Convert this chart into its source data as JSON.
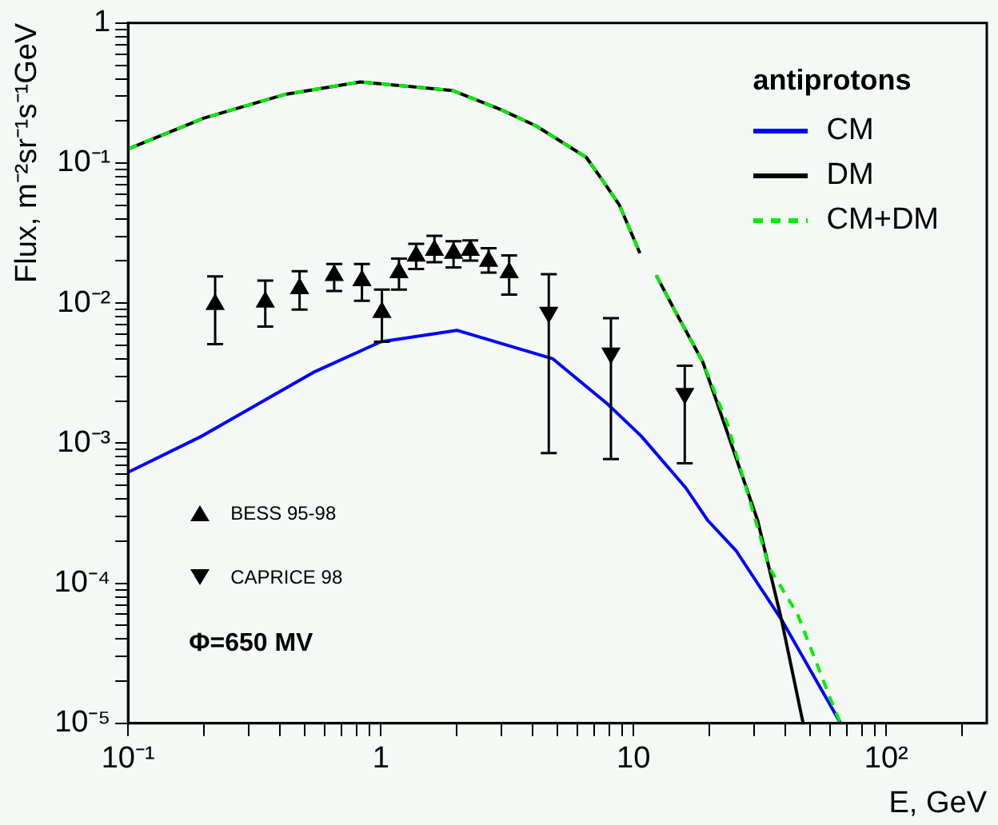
{
  "chart_data": {
    "type": "line",
    "xlabel": "E, GeV",
    "ylabel": "Flux, m⁻²sr⁻¹s⁻¹GeV",
    "legend_title": "antiprotons",
    "legend": "top right",
    "log": "xy",
    "grid": false,
    "xlim": [
      0.1,
      250
    ],
    "xticks": [
      {
        "value": 0.1,
        "label": "10⁻¹"
      },
      {
        "value": 0.2,
        "label": null
      },
      {
        "value": 0.3,
        "label": null
      },
      {
        "value": 0.4,
        "label": null
      },
      {
        "value": 0.5,
        "label": null
      },
      {
        "value": 0.6,
        "label": null
      },
      {
        "value": 0.7,
        "label": null
      },
      {
        "value": 0.8,
        "label": null
      },
      {
        "value": 0.9,
        "label": null
      },
      1,
      {
        "value": 2,
        "label": null
      },
      {
        "value": 3,
        "label": null
      },
      {
        "value": 4,
        "label": null
      },
      {
        "value": 5,
        "label": null
      },
      {
        "value": 6,
        "label": null
      },
      {
        "value": 7,
        "label": null
      },
      {
        "value": 8,
        "label": null
      },
      {
        "value": 9,
        "label": null
      },
      10,
      {
        "value": 20,
        "label": null
      },
      {
        "value": 30,
        "label": null
      },
      {
        "value": 40,
        "label": null
      },
      {
        "value": 50,
        "label": null
      },
      {
        "value": 60,
        "label": null
      },
      {
        "value": 70,
        "label": null
      },
      {
        "value": 80,
        "label": null
      },
      {
        "value": 90,
        "label": null
      },
      {
        "value": 100,
        "label": "10²"
      },
      {
        "value": 200,
        "label": null
      }
    ],
    "ylim": [
      1e-05,
      1
    ],
    "yticks": [
      {
        "value": 1e-05,
        "label": "10⁻⁵"
      },
      {
        "value": 2e-05,
        "label": null
      },
      {
        "value": 3e-05,
        "label": null
      },
      {
        "value": 4e-05,
        "label": null
      },
      {
        "value": 5e-05,
        "label": null
      },
      {
        "value": 6e-05,
        "label": null
      },
      {
        "value": 7e-05,
        "label": null
      },
      {
        "value": 8e-05,
        "label": null
      },
      {
        "value": 9e-05,
        "label": null
      },
      {
        "value": 0.0001,
        "label": "10⁻⁴"
      },
      {
        "value": 0.0002,
        "label": null
      },
      {
        "value": 0.0003,
        "label": null
      },
      {
        "value": 0.0004,
        "label": null
      },
      {
        "value": 0.0005,
        "label": null
      },
      {
        "value": 0.0006,
        "label": null
      },
      {
        "value": 0.0007,
        "label": null
      },
      {
        "value": 0.0008,
        "label": null
      },
      {
        "value": 0.0009,
        "label": null
      },
      {
        "value": 0.001,
        "label": "10⁻³"
      },
      {
        "value": 0.002,
        "label": null
      },
      {
        "value": 0.003,
        "label": null
      },
      {
        "value": 0.004,
        "label": null
      },
      {
        "value": 0.005,
        "label": null
      },
      {
        "value": 0.006,
        "label": null
      },
      {
        "value": 0.007,
        "label": null
      },
      {
        "value": 0.008,
        "label": null
      },
      {
        "value": 0.009,
        "label": null
      },
      {
        "value": 0.01,
        "label": "10⁻²"
      },
      {
        "value": 0.02,
        "label": null
      },
      {
        "value": 0.03,
        "label": null
      },
      {
        "value": 0.04,
        "label": null
      },
      {
        "value": 0.05,
        "label": null
      },
      {
        "value": 0.06,
        "label": null
      },
      {
        "value": 0.07,
        "label": null
      },
      {
        "value": 0.08,
        "label": null
      },
      {
        "value": 0.09,
        "label": null
      },
      {
        "value": 0.1,
        "label": "10⁻¹"
      },
      {
        "value": 0.2,
        "label": null
      },
      {
        "value": 0.3,
        "label": null
      },
      {
        "value": 0.4,
        "label": null
      },
      {
        "value": 0.5,
        "label": null
      },
      {
        "value": 0.6,
        "label": null
      },
      {
        "value": 0.7,
        "label": null
      },
      {
        "value": 0.8,
        "label": null
      },
      {
        "value": 0.9,
        "label": null
      },
      1
    ],
    "annotations": [
      "Φ=650 MV"
    ],
    "series": [
      {
        "name": "CM",
        "color": "#0000ff",
        "line_style": "solid",
        "x": [
          0.1,
          0.197,
          0.54,
          1,
          2.0,
          4.8,
          7.9,
          10.7,
          16.1,
          19.7,
          25.5,
          38.5,
          66
        ],
        "values": [
          0.00062,
          0.00113,
          0.0032,
          0.0053,
          0.0064,
          0.004,
          0.0019,
          0.00113,
          0.00048,
          0.00028,
          0.00017,
          5.5e-05,
          1e-05
        ]
      },
      {
        "name": "DM",
        "color": "#000000",
        "line_style": "solid",
        "x": [
          0.1,
          0.2,
          0.42,
          0.83,
          1.92,
          3.0,
          4.1,
          6.5,
          7.55,
          8.8,
          10.6,
          11.4,
          12.3,
          14.5,
          18.8,
          20.8,
          31,
          38.5,
          46.9
        ],
        "values": [
          0.126,
          0.21,
          0.31,
          0.38,
          0.33,
          0.24,
          0.185,
          0.11,
          0.075,
          0.05,
          0.0227,
          null,
          0.0158,
          0.009,
          0.0038,
          0.00226,
          0.00028,
          5.5e-05,
          1e-05
        ]
      },
      {
        "name": "CM+DM",
        "color": "#00ee00",
        "line_style": "dashed",
        "x": [
          0.1,
          0.2,
          0.42,
          0.83,
          1.92,
          3.0,
          4.1,
          6.5,
          7.55,
          8.8,
          10.6,
          11.4,
          12.3,
          14.5,
          18.8,
          23.6,
          34.4,
          44.6,
          60.1,
          66
        ],
        "values": [
          0.126,
          0.21,
          0.31,
          0.38,
          0.33,
          0.24,
          0.185,
          0.11,
          0.075,
          0.05,
          0.0227,
          null,
          0.0158,
          0.009,
          0.0038,
          0.00135,
          0.00013,
          6e-05,
          1.5e-05,
          1e-05
        ]
      },
      {
        "name": "BESS 95-98",
        "type": "scatter",
        "marker": "triangle",
        "color": "#000000",
        "x": [
          0.221,
          0.349,
          0.477,
          0.654,
          0.842,
          1.01,
          1.18,
          1.38,
          1.63,
          1.94,
          2.26,
          2.67,
          3.22
        ],
        "values": [
          0.0098,
          0.0102,
          0.0127,
          0.0158,
          0.0145,
          0.0086,
          0.0165,
          0.0217,
          0.0239,
          0.0227,
          0.0239,
          0.0199,
          0.0165
        ],
        "errors": [
          [
            0.0051,
            0.0155
          ],
          [
            0.0068,
            0.0145
          ],
          [
            0.009,
            0.0169
          ],
          [
            0.0122,
            0.019
          ],
          [
            0.0104,
            0.019
          ],
          [
            0.0053,
            0.0125
          ],
          [
            0.0125,
            0.0208
          ],
          [
            0.0175,
            0.0265
          ],
          [
            0.0196,
            0.0302
          ],
          [
            0.018,
            0.0277
          ],
          [
            0.0201,
            0.028
          ],
          [
            0.0165,
            0.0247
          ],
          [
            0.0115,
            0.0219
          ]
        ]
      },
      {
        "name": "CAPRICE 98",
        "type": "scatter",
        "marker": "triangle-down",
        "color": "#000000",
        "x": [
          4.62,
          8.14,
          15.95
        ],
        "values": [
          0.0086,
          0.0044,
          0.00226
        ],
        "errors": [
          [
            0.00085,
            0.0161
          ],
          [
            0.00077,
            0.0078
          ],
          [
            0.00072,
            0.00357
          ]
        ]
      }
    ]
  }
}
